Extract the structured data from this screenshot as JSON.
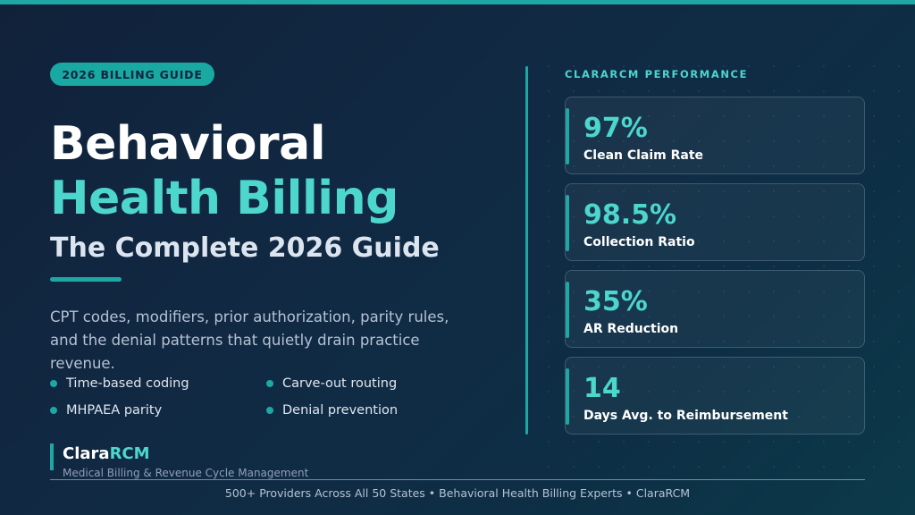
{
  "badge": "2026 BILLING GUIDE",
  "title": {
    "line1": "Behavioral",
    "line2": "Health Billing",
    "subtitle": "The Complete 2026 Guide"
  },
  "description": "CPT codes, modifiers, prior authorization, parity rules, and the denial patterns that quietly drain practice revenue.",
  "bullets": [
    "Time-based coding",
    "Carve-out routing",
    "MHPAEA parity",
    "Denial prevention"
  ],
  "logo": {
    "part1": "Clara",
    "part2": "RCM",
    "tagline": "Medical Billing & Revenue Cycle Management"
  },
  "stats": {
    "heading": "CLARARCM PERFORMANCE",
    "items": [
      {
        "value": "97%",
        "label": "Clean Claim Rate"
      },
      {
        "value": "98.5%",
        "label": "Collection Ratio"
      },
      {
        "value": "35%",
        "label": "AR Reduction"
      },
      {
        "value": "14",
        "label": "Days Avg. to Reimbursement"
      }
    ]
  },
  "footer": "500+ Providers Across All 50 States  •  Behavioral Health Billing Experts  •  ClaraRCM",
  "colors": {
    "accent": "#1ea7a3",
    "highlight": "#4cd6cc",
    "background": "#11213a"
  }
}
